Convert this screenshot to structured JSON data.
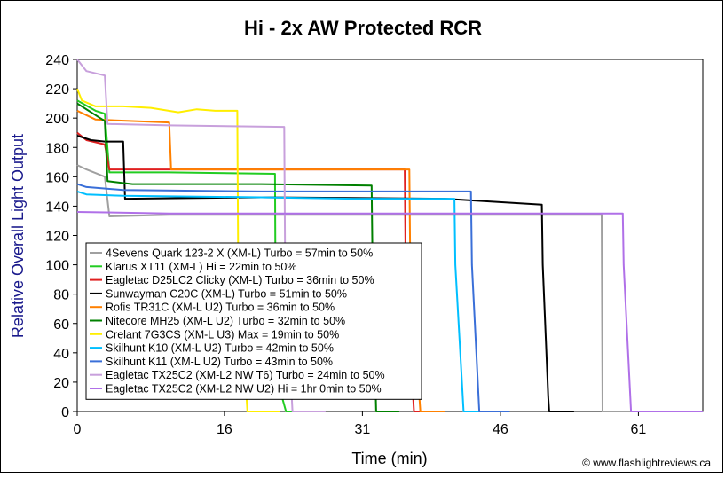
{
  "chart_data": {
    "type": "line",
    "title": "Hi - 2x AW Protected RCR",
    "xlabel": "Time (min)",
    "ylabel": "Relative Overall Light Output",
    "xlim": [
      0,
      68
    ],
    "ylim": [
      0,
      240
    ],
    "xticks": [
      0,
      16,
      31,
      46,
      61
    ],
    "xtick_labels": [
      "0",
      "16",
      "31",
      "46",
      "61"
    ],
    "yticks": [
      0,
      20,
      40,
      60,
      80,
      100,
      120,
      140,
      160,
      180,
      200,
      220,
      240
    ],
    "ytick_labels": [
      "0",
      "20",
      "40",
      "60",
      "80",
      "100",
      "120",
      "140",
      "160",
      "180",
      "200",
      "220",
      "240"
    ],
    "grid": false,
    "legend_position": "bottom-left",
    "credit": "© www.flashlightreviews.ca",
    "series": [
      {
        "name": "4Sevens Quark 123-2 X (XM-L) Turbo = 57min to 50%",
        "color": "#a0a0a0",
        "x": [
          0,
          1,
          3,
          3.5,
          10,
          30,
          57,
          57.1,
          58,
          62
        ],
        "y": [
          168,
          165,
          160,
          133,
          134,
          134,
          134,
          0,
          0,
          0
        ]
      },
      {
        "name": "Klarus XT11 (XM-L) Hi = 22min to 50%",
        "color": "#22cc22",
        "x": [
          0,
          2,
          3,
          3.5,
          10,
          21.5,
          21.6,
          22.7,
          22.8,
          25
        ],
        "y": [
          212,
          205,
          203,
          163,
          163,
          162,
          25,
          0,
          0,
          0
        ]
      },
      {
        "name": "Eagletac D25LC2 Clicky (XM-L) Turbo = 36min to 50%",
        "color": "#e02020",
        "x": [
          0,
          1,
          3,
          3.5,
          20,
          35.6,
          35.7,
          36.6,
          36.7,
          40
        ],
        "y": [
          190,
          185,
          182,
          165,
          165,
          165,
          100,
          0,
          0,
          0
        ]
      },
      {
        "name": "Sunwayman C20C (XM-L) Turbo = 51min to 50%",
        "color": "#000000",
        "x": [
          0,
          1.5,
          3,
          5,
          5.2,
          20,
          40,
          50.5,
          50.6,
          51.2,
          51.3,
          54
        ],
        "y": [
          188,
          185,
          184,
          184,
          145,
          146,
          145,
          141,
          100,
          10,
          0,
          0
        ]
      },
      {
        "name": "Rofis TR31C (XM-L U2) Turbo = 36min to 50%",
        "color": "#ff8000",
        "x": [
          0,
          2,
          10,
          10.2,
          20,
          36.1,
          36.2,
          37.3,
          37.4,
          40
        ],
        "y": [
          205,
          199,
          197,
          165,
          165,
          165,
          100,
          0,
          0,
          0
        ]
      },
      {
        "name": "Nitecore MH25 (XM-L U2) Turbo = 32min to 50%",
        "color": "#008000",
        "x": [
          0,
          2.5,
          3,
          3.3,
          6,
          20,
          32,
          32.1,
          32.5,
          32.6,
          35
        ],
        "y": [
          210,
          200,
          198,
          157,
          155,
          155,
          154,
          100,
          0,
          0,
          0
        ]
      },
      {
        "name": "Crelant 7G3CS (XM-L U3) Max = 19min to 50%",
        "color": "#ffee00",
        "x": [
          0,
          0.5,
          2,
          5,
          8,
          11,
          13,
          15,
          17,
          17.4,
          17.5,
          18.5,
          18.6,
          22
        ],
        "y": [
          220,
          212,
          208,
          208,
          207,
          204,
          206,
          205,
          205,
          205,
          100,
          0,
          0,
          0
        ]
      },
      {
        "name": "Skilhunt K10 (XM-L U2) Turbo = 42min to 50%",
        "color": "#00bfff",
        "x": [
          0,
          1,
          5,
          20,
          30,
          41,
          41.1,
          42,
          42.1,
          46
        ],
        "y": [
          150,
          148,
          147,
          146,
          145,
          145,
          100,
          0,
          0,
          0
        ]
      },
      {
        "name": "Skilhunt K11 (XM-L U2) Turbo = 43min to 50%",
        "color": "#3a6fd8",
        "x": [
          0,
          1,
          5,
          20,
          30,
          42.8,
          42.9,
          43.7,
          43.8,
          47
        ],
        "y": [
          155,
          153,
          151,
          150,
          150,
          150,
          100,
          0,
          0,
          0
        ]
      },
      {
        "name": "Eagletac TX25C2 (XM-L2 NW T6) Turbo = 24min to 50%",
        "color": "#c8a0dc",
        "x": [
          0,
          1,
          3,
          3.3,
          10,
          22.5,
          22.6,
          23.4,
          23.5,
          27
        ],
        "y": [
          240,
          232,
          229,
          196,
          195,
          194,
          100,
          0,
          0,
          0
        ]
      },
      {
        "name": "Eagletac TX25C2 (XM-L2 NW U2) Hi = 1hr 0min to 50%",
        "color": "#b070e8",
        "x": [
          0,
          10,
          30,
          59.3,
          59.4,
          60.2,
          60.3,
          68
        ],
        "y": [
          136,
          135,
          135,
          135,
          100,
          0,
          0,
          0
        ]
      }
    ]
  }
}
